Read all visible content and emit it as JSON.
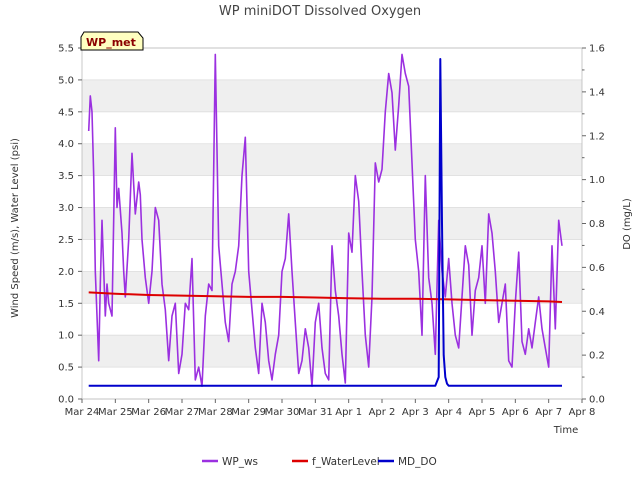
{
  "chart_data": {
    "type": "line",
    "title": "WP miniDOT Dissolved Oxygen",
    "site_tag": "WP_met",
    "xlabel": "Time",
    "ylabel": "Wind Speed (m/s), Water Level (psi)",
    "y2label": "DO (mg/L)",
    "x_start": "Mar 24",
    "xlim": [
      0,
      15
    ],
    "ylim": [
      0,
      5.5
    ],
    "y2lim": [
      0,
      1.6
    ],
    "x_ticks": [
      {
        "value": 0,
        "label": "Mar 24"
      },
      {
        "value": 1,
        "label": "Mar 25"
      },
      {
        "value": 2,
        "label": "Mar 26"
      },
      {
        "value": 3,
        "label": "Mar 27"
      },
      {
        "value": 4,
        "label": "Mar 28"
      },
      {
        "value": 5,
        "label": "Mar 29"
      },
      {
        "value": 6,
        "label": "Mar 30"
      },
      {
        "value": 7,
        "label": "Mar 31"
      },
      {
        "value": 8,
        "label": "Apr 1"
      },
      {
        "value": 9,
        "label": "Apr 2"
      },
      {
        "value": 10,
        "label": "Apr 3"
      },
      {
        "value": 11,
        "label": "Apr 4"
      },
      {
        "value": 12,
        "label": "Apr 5"
      },
      {
        "value": 13,
        "label": "Apr 6"
      },
      {
        "value": 14,
        "label": "Apr 7"
      },
      {
        "value": 15,
        "label": "Apr 8"
      }
    ],
    "y_ticks": [
      "0.0",
      "0.5",
      "1.0",
      "1.5",
      "2.0",
      "2.5",
      "3.0",
      "3.5",
      "4.0",
      "4.5",
      "5.0",
      "5.5"
    ],
    "y2_ticks": [
      "0.0",
      "0.2",
      "0.4",
      "0.6",
      "0.8",
      "1.0",
      "1.2",
      "1.4",
      "1.6"
    ],
    "grid": "horizontal bands",
    "legend_position": "bottom",
    "series": [
      {
        "name": "WP_ws",
        "axis": "left",
        "color": "#9b30e0",
        "x": [
          0.2,
          0.25,
          0.3,
          0.35,
          0.4,
          0.5,
          0.55,
          0.6,
          0.7,
          0.75,
          0.8,
          0.9,
          1.0,
          1.05,
          1.1,
          1.2,
          1.25,
          1.3,
          1.4,
          1.5,
          1.6,
          1.7,
          1.75,
          1.8,
          1.9,
          2.0,
          2.1,
          2.2,
          2.3,
          2.4,
          2.5,
          2.6,
          2.7,
          2.8,
          2.9,
          3.0,
          3.1,
          3.2,
          3.3,
          3.4,
          3.5,
          3.6,
          3.7,
          3.8,
          3.9,
          4.0,
          4.1,
          4.2,
          4.3,
          4.4,
          4.5,
          4.6,
          4.7,
          4.8,
          4.9,
          5.0,
          5.1,
          5.2,
          5.3,
          5.4,
          5.5,
          5.6,
          5.7,
          5.8,
          5.9,
          6.0,
          6.1,
          6.2,
          6.3,
          6.4,
          6.5,
          6.6,
          6.7,
          6.8,
          6.9,
          7.0,
          7.1,
          7.2,
          7.3,
          7.4,
          7.5,
          7.6,
          7.7,
          7.8,
          7.9,
          8.0,
          8.1,
          8.2,
          8.3,
          8.4,
          8.5,
          8.6,
          8.7,
          8.8,
          8.9,
          9.0,
          9.1,
          9.2,
          9.3,
          9.4,
          9.5,
          9.6,
          9.7,
          9.8,
          9.9,
          10.0,
          10.1,
          10.2,
          10.3,
          10.4,
          10.5,
          10.6,
          10.7,
          10.8,
          10.9,
          11.0,
          11.1,
          11.2,
          11.3,
          11.4,
          11.5,
          11.6,
          11.7,
          11.8,
          11.9,
          12.0,
          12.1,
          12.2,
          12.3,
          12.4,
          12.5,
          12.6,
          12.7,
          12.8,
          12.9,
          13.0,
          13.1,
          13.2,
          13.3,
          13.4,
          13.5,
          13.6,
          13.7,
          13.8,
          13.9,
          14.0,
          14.1,
          14.2,
          14.3,
          14.4
        ],
        "values": [
          4.2,
          4.75,
          4.5,
          3.5,
          2.0,
          0.6,
          1.8,
          2.8,
          1.3,
          1.8,
          1.5,
          1.3,
          4.25,
          3.0,
          3.3,
          2.6,
          2.0,
          1.6,
          2.5,
          3.85,
          2.9,
          3.4,
          3.2,
          2.5,
          1.9,
          1.5,
          2.0,
          3.0,
          2.8,
          1.8,
          1.4,
          0.6,
          1.3,
          1.5,
          0.4,
          0.7,
          1.5,
          1.4,
          2.2,
          0.3,
          0.5,
          0.2,
          1.3,
          1.8,
          1.7,
          5.4,
          2.4,
          1.8,
          1.2,
          0.9,
          1.8,
          2.0,
          2.4,
          3.5,
          4.1,
          2.0,
          1.4,
          0.8,
          0.4,
          1.5,
          1.2,
          0.6,
          0.3,
          0.7,
          1.0,
          2.0,
          2.2,
          2.9,
          2.0,
          1.2,
          0.4,
          0.6,
          1.1,
          0.8,
          0.2,
          1.2,
          1.5,
          0.8,
          0.4,
          0.3,
          2.4,
          1.7,
          1.3,
          0.7,
          0.25,
          2.6,
          2.3,
          3.5,
          3.1,
          2.0,
          1.0,
          0.5,
          1.6,
          3.7,
          3.4,
          3.6,
          4.5,
          5.1,
          4.8,
          3.9,
          4.6,
          5.4,
          5.1,
          4.9,
          3.7,
          2.5,
          2.0,
          1.0,
          3.5,
          1.9,
          1.5,
          0.7,
          2.8,
          2.0,
          1.6,
          2.2,
          1.5,
          1.0,
          0.8,
          1.6,
          2.4,
          2.1,
          1.0,
          1.7,
          1.9,
          2.4,
          1.5,
          2.9,
          2.6,
          2.0,
          1.2,
          1.5,
          1.8,
          0.6,
          0.5,
          1.5,
          2.3,
          0.9,
          0.7,
          1.1,
          0.8,
          1.2,
          1.6,
          1.1,
          0.8,
          0.5,
          2.4,
          1.1,
          2.8,
          2.4
        ]
      },
      {
        "name": "f_WaterLevel",
        "axis": "left",
        "color": "#dd0000",
        "x": [
          0.2,
          1.0,
          2.0,
          3.0,
          4.0,
          5.0,
          6.0,
          7.0,
          8.0,
          9.0,
          10.0,
          11.0,
          12.0,
          13.0,
          14.0,
          14.4
        ],
        "values": [
          1.67,
          1.65,
          1.63,
          1.62,
          1.61,
          1.6,
          1.6,
          1.59,
          1.58,
          1.57,
          1.57,
          1.56,
          1.55,
          1.54,
          1.53,
          1.52
        ]
      },
      {
        "name": "MD_DO",
        "axis": "right",
        "color": "#0000cc",
        "x": [
          0.2,
          10.6,
          10.7,
          10.75,
          10.8,
          10.85,
          10.9,
          10.95,
          11.0,
          11.1,
          14.4
        ],
        "values": [
          0.06,
          0.06,
          0.1,
          1.55,
          0.8,
          0.2,
          0.1,
          0.07,
          0.06,
          0.06,
          0.06
        ]
      }
    ]
  }
}
